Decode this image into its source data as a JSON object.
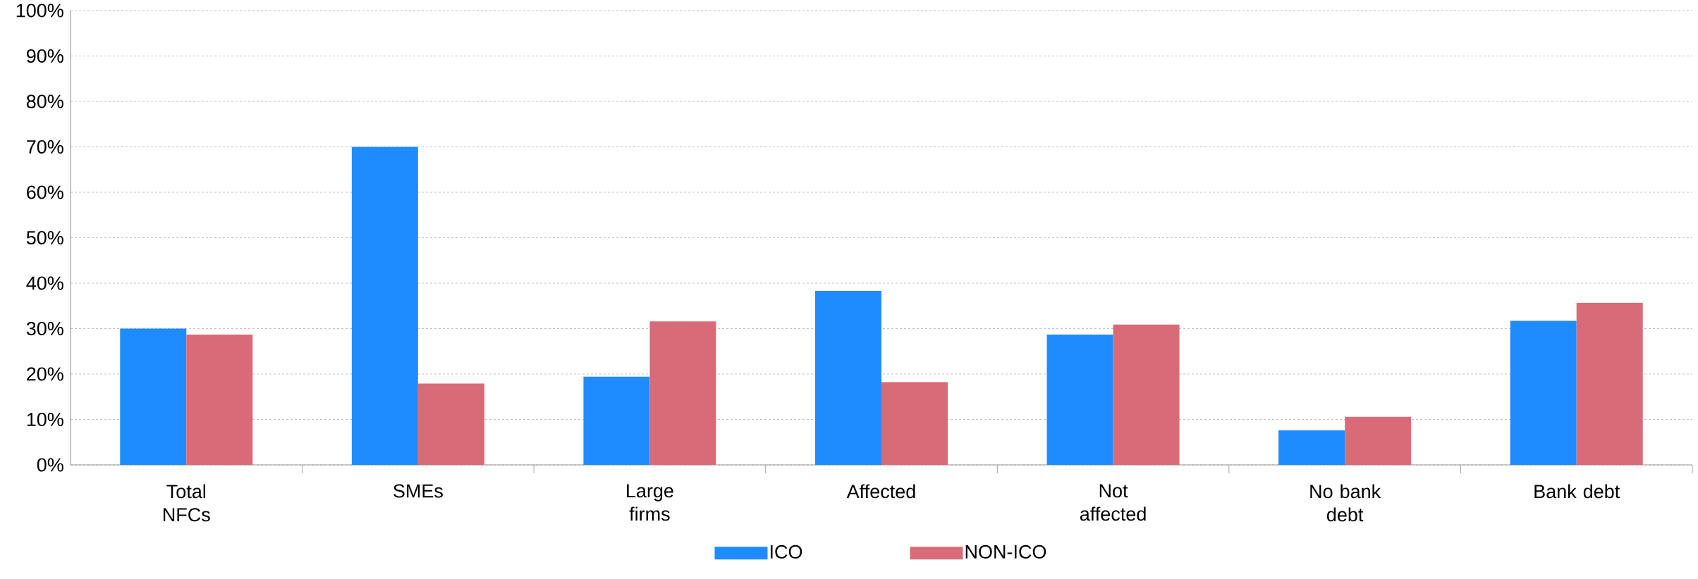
{
  "chart_data": {
    "type": "bar",
    "categories": [
      "Total NFCs",
      "SMEs",
      "Large firms",
      "Affected",
      "Not affected",
      "No bank debt",
      "Bank debt"
    ],
    "series": [
      {
        "name": "ICO",
        "color": "#1e8cff",
        "values": [
          30.0,
          70.0,
          19.4,
          38.3,
          28.7,
          7.6,
          31.7
        ]
      },
      {
        "name": "NON-ICO",
        "color": "#d96b78",
        "values": [
          28.7,
          17.9,
          31.6,
          18.2,
          30.9,
          10.6,
          35.7
        ]
      }
    ],
    "ylim": [
      0,
      100
    ],
    "yticks": [
      {
        "value": 0,
        "label": "0%"
      },
      {
        "value": 10,
        "label": "10%"
      },
      {
        "value": 20,
        "label": "20%"
      },
      {
        "value": 30,
        "label": "30%"
      },
      {
        "value": 40,
        "label": "40%"
      },
      {
        "value": 50,
        "label": "50%"
      },
      {
        "value": 60,
        "label": "60%"
      },
      {
        "value": 70,
        "label": "70%"
      },
      {
        "value": 80,
        "label": "80%"
      },
      {
        "value": 90,
        "label": "90%"
      },
      {
        "value": 100,
        "label": "100%"
      }
    ],
    "grid": "y",
    "legend": "bottom"
  }
}
